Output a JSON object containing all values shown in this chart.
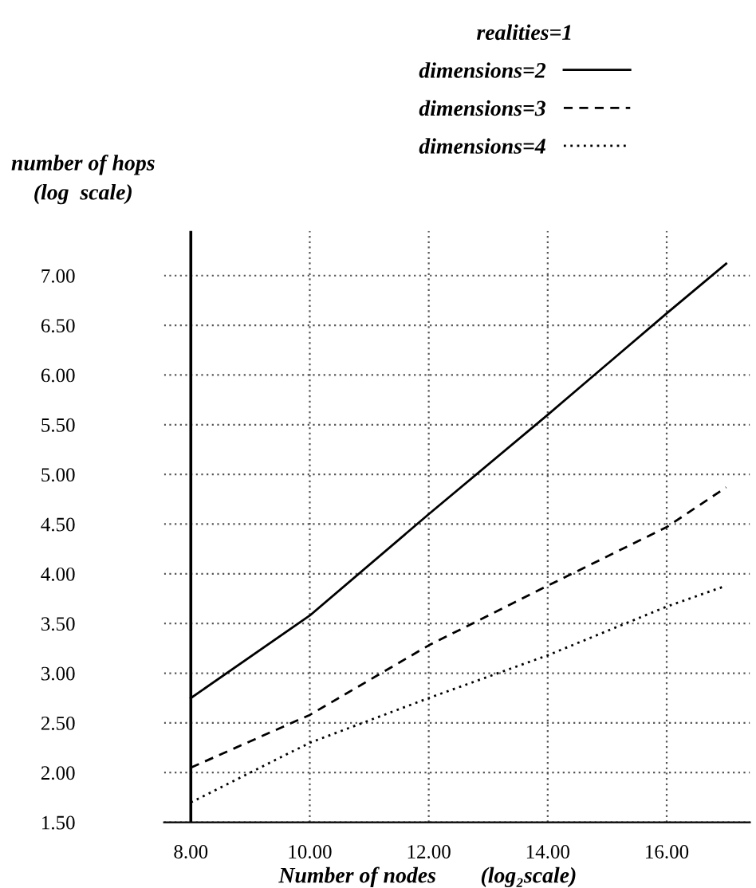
{
  "chart_data": {
    "type": "line",
    "xlabel": "Number of nodes        (log₂scale)",
    "ylabel": "number of hops\n(log  scale)",
    "legend_title": "realities=1",
    "x": [
      8,
      10,
      12,
      14,
      16,
      17
    ],
    "series": [
      {
        "name": "dimensions=2",
        "color": "#000000",
        "line_style": "solid",
        "values": [
          2.75,
          3.58,
          4.6,
          5.6,
          6.62,
          7.12
        ]
      },
      {
        "name": "dimensions=3",
        "color": "#000000",
        "line_style": "dashed",
        "values": [
          2.05,
          2.58,
          3.28,
          3.88,
          4.47,
          4.87
        ]
      },
      {
        "name": "dimensions=4",
        "color": "#000000",
        "line_style": "dotted",
        "values": [
          1.7,
          2.3,
          2.75,
          3.18,
          3.67,
          3.88
        ]
      }
    ],
    "xlim": [
      7.55,
      17.4
    ],
    "ylim": [
      1.5,
      7.45
    ],
    "xticks": [
      {
        "value": 8,
        "label": "8.00"
      },
      {
        "value": 10,
        "label": "10.00"
      },
      {
        "value": 12,
        "label": "12.00"
      },
      {
        "value": 14,
        "label": "14.00"
      },
      {
        "value": 16,
        "label": "16.00"
      }
    ],
    "yticks": [
      {
        "value": 1.5,
        "label": "1.50"
      },
      {
        "value": 2,
        "label": "2.00"
      },
      {
        "value": 2.5,
        "label": "2.50"
      },
      {
        "value": 3,
        "label": "3.00"
      },
      {
        "value": 3.5,
        "label": "3.50"
      },
      {
        "value": 4,
        "label": "4.00"
      },
      {
        "value": 4.5,
        "label": "4.50"
      },
      {
        "value": 5,
        "label": "5.00"
      },
      {
        "value": 5.5,
        "label": "5.50"
      },
      {
        "value": 6,
        "label": "6.00"
      },
      {
        "value": 6.5,
        "label": "6.50"
      },
      {
        "value": 7,
        "label": "7.00"
      }
    ],
    "ref_lines": [
      {
        "axis": "x",
        "value": 8,
        "color": "#000000",
        "line_style": "solid"
      }
    ],
    "grid": true,
    "legend": "top right",
    "marker": "none"
  }
}
